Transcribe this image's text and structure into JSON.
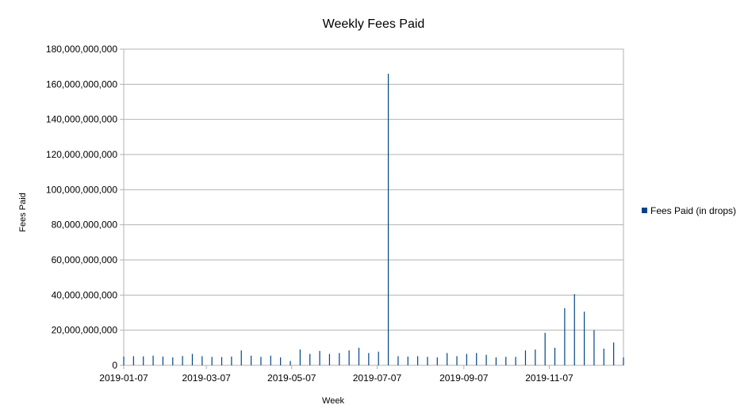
{
  "chart_data": {
    "type": "bar",
    "title": "Weekly Fees Paid",
    "xlabel": "Week",
    "ylabel": "Fees Paid",
    "ylim": [
      0,
      180000000000
    ],
    "y_ticks": [
      0,
      20000000000,
      40000000000,
      60000000000,
      80000000000,
      100000000000,
      120000000000,
      140000000000,
      160000000000,
      180000000000
    ],
    "y_tick_labels": [
      "0",
      "20,000,000,000",
      "40,000,000,000",
      "60,000,000,000",
      "80,000,000,000",
      "100,000,000,000",
      "120,000,000,000",
      "140,000,000,000",
      "160,000,000,000",
      "180,000,000,000"
    ],
    "x_tick_labels": [
      {
        "label": "2019-01-07",
        "index": 0
      },
      {
        "label": "2019-03-07",
        "index": 8.43
      },
      {
        "label": "2019-05-07",
        "index": 17.14
      },
      {
        "label": "2019-07-07",
        "index": 25.86
      },
      {
        "label": "2019-09-07",
        "index": 34.71
      },
      {
        "label": "2019-11-07",
        "index": 43.43
      }
    ],
    "grid": true,
    "legend_position": "right",
    "categories": [
      "2019-01-07",
      "2019-01-14",
      "2019-01-21",
      "2019-01-28",
      "2019-02-04",
      "2019-02-11",
      "2019-02-18",
      "2019-02-25",
      "2019-03-04",
      "2019-03-11",
      "2019-03-18",
      "2019-03-25",
      "2019-04-01",
      "2019-04-08",
      "2019-04-15",
      "2019-04-22",
      "2019-04-29",
      "2019-05-06",
      "2019-05-13",
      "2019-05-20",
      "2019-05-27",
      "2019-06-03",
      "2019-06-10",
      "2019-06-17",
      "2019-06-24",
      "2019-07-01",
      "2019-07-08",
      "2019-07-15",
      "2019-07-22",
      "2019-07-29",
      "2019-08-05",
      "2019-08-12",
      "2019-08-19",
      "2019-08-26",
      "2019-09-02",
      "2019-09-09",
      "2019-09-16",
      "2019-09-23",
      "2019-09-30",
      "2019-10-07",
      "2019-10-14",
      "2019-10-21",
      "2019-10-28",
      "2019-11-04",
      "2019-11-11",
      "2019-11-18",
      "2019-11-25",
      "2019-12-02",
      "2019-12-09",
      "2019-12-16",
      "2019-12-23",
      "2019-12-30"
    ],
    "series": [
      {
        "name": "Fees Paid (in drops)",
        "color": "#004586",
        "values": [
          5000000000,
          5200000000,
          5100000000,
          5500000000,
          5000000000,
          4500000000,
          5300000000,
          6500000000,
          5200000000,
          4800000000,
          4700000000,
          5000000000,
          8500000000,
          5500000000,
          4800000000,
          5500000000,
          4500000000,
          2500000000,
          9000000000,
          6500000000,
          8200000000,
          6500000000,
          7000000000,
          8500000000,
          10000000000,
          7000000000,
          7800000000,
          166000000000,
          5200000000,
          5000000000,
          5200000000,
          4800000000,
          4500000000,
          7000000000,
          5200000000,
          6500000000,
          7000000000,
          6000000000,
          4500000000,
          4800000000,
          4800000000,
          8500000000,
          9000000000,
          18500000000,
          10000000000,
          32500000000,
          40500000000,
          30500000000,
          20000000000,
          9500000000,
          13000000000,
          4500000000
        ]
      }
    ]
  }
}
